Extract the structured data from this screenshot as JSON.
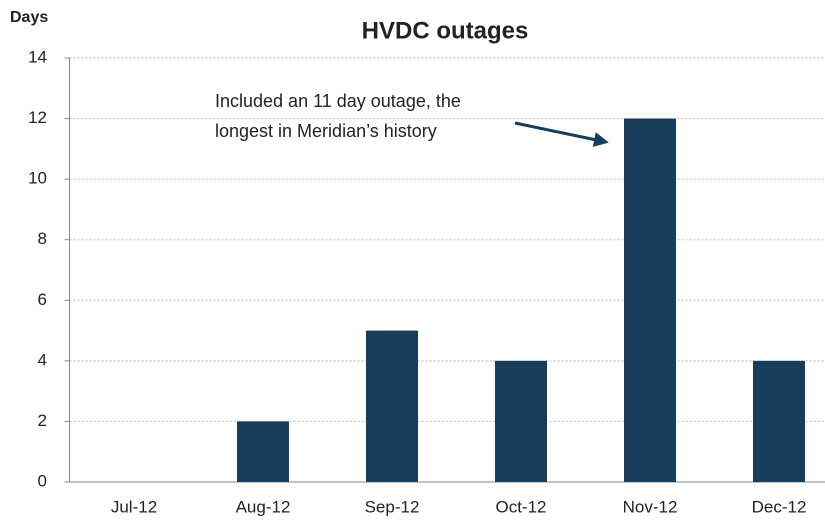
{
  "chart_data": {
    "type": "bar",
    "title": "HVDC outages",
    "y_label": "Days",
    "categories": [
      "Jul-12",
      "Aug-12",
      "Sep-12",
      "Oct-12",
      "Nov-12",
      "Dec-12"
    ],
    "values": [
      0,
      2,
      5,
      4,
      12,
      4
    ],
    "color": "#163d5c",
    "ylim": [
      0,
      14
    ],
    "yticks": [
      0,
      2,
      4,
      6,
      8,
      10,
      12,
      14
    ],
    "grid": true,
    "annotation": [
      "Included an 11 day outage, the",
      "longest in Meridian’s history"
    ]
  }
}
